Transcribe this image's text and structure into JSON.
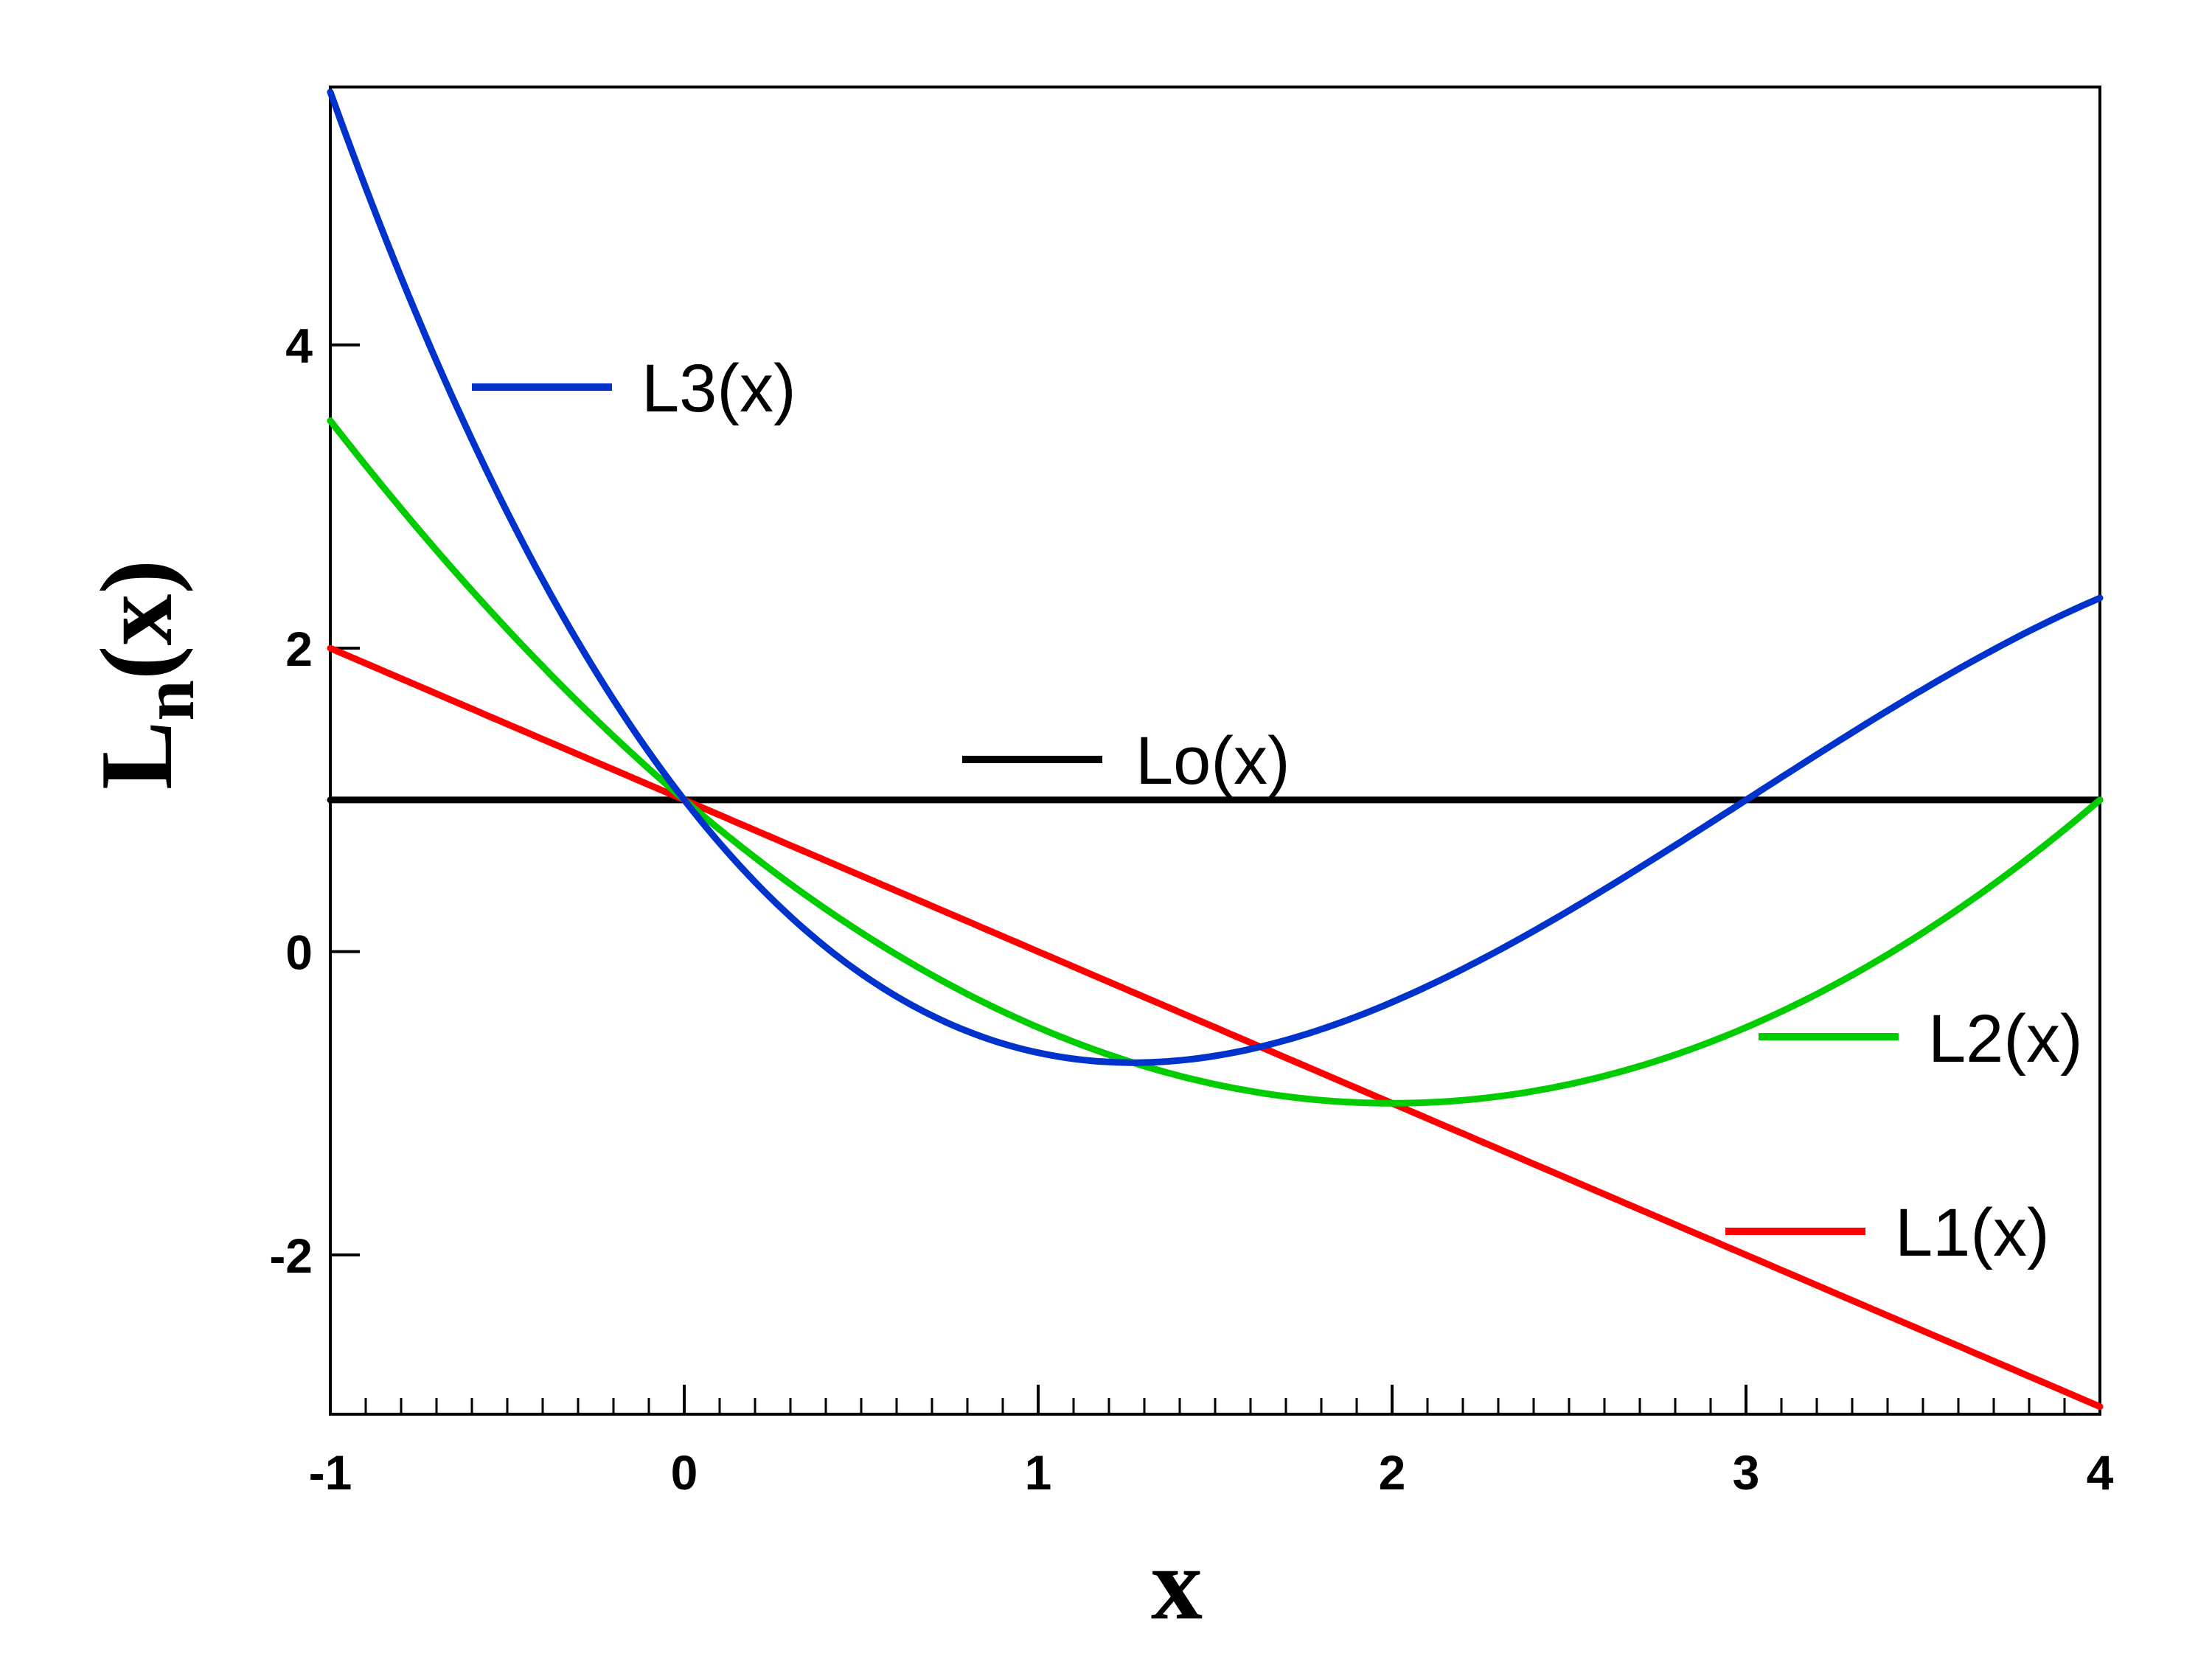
{
  "chart_data": {
    "type": "line",
    "xlabel": "x",
    "ylabel": {
      "main": "L",
      "sub": "n",
      "rest": "(x)"
    },
    "xlim": [
      -1,
      4
    ],
    "ylim": [
      -3.05,
      5.7
    ],
    "x_ticks": [
      {
        "value": -1,
        "label": "-1"
      },
      {
        "value": 0,
        "label": "0"
      },
      {
        "value": 1,
        "label": "1"
      },
      {
        "value": 2,
        "label": "2"
      },
      {
        "value": 3,
        "label": "3"
      },
      {
        "value": 4,
        "label": "4"
      }
    ],
    "y_ticks": [
      {
        "value": -2,
        "label": "-2"
      },
      {
        "value": 0,
        "label": "0"
      },
      {
        "value": 2,
        "label": "2"
      },
      {
        "value": 4,
        "label": "4"
      }
    ],
    "x_minor_step": 0.1,
    "grid": false,
    "legend": "inline labels next to curves",
    "series": [
      {
        "key": "L0",
        "name": "Lo(x)",
        "color": "#000000",
        "coefficients": [
          1
        ]
      },
      {
        "key": "L1",
        "name": "L1(x)",
        "color": "#ff0000",
        "coefficients": [
          1,
          -1
        ]
      },
      {
        "key": "L2",
        "name": "L2(x)",
        "color": "#00cc00",
        "coefficients": [
          1,
          -2,
          0.5
        ]
      },
      {
        "key": "L3",
        "name": "L3(x)",
        "color": "#0033cc",
        "coefficients": [
          1,
          -3,
          1.5,
          -0.1667
        ]
      }
    ]
  }
}
